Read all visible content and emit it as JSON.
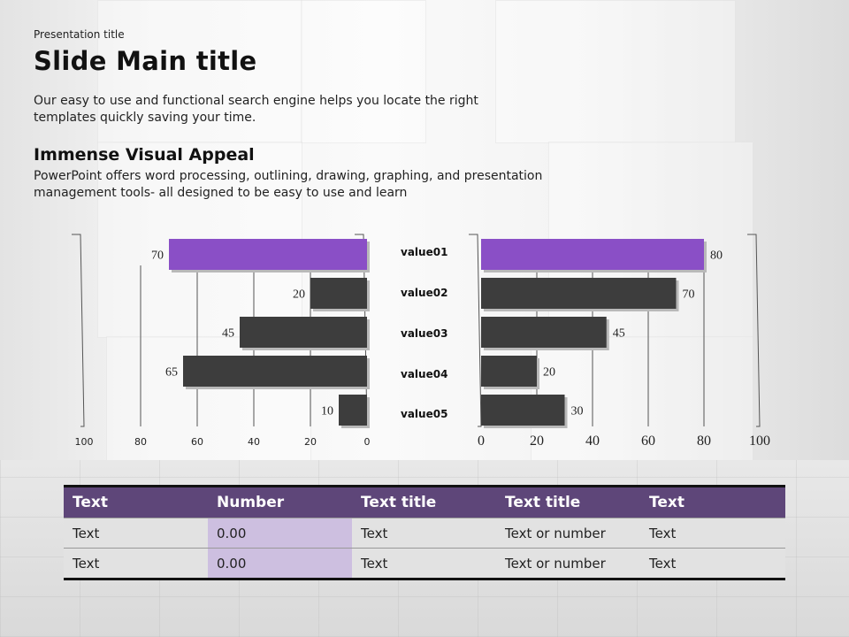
{
  "header": {
    "presentation_title": "Presentation title",
    "slide_title": "Slide Main title",
    "intro": "Our easy to use and functional search engine helps you locate the right templates quickly saving your time."
  },
  "section": {
    "heading": "Immense Visual Appeal",
    "body": "PowerPoint offers word processing, outlining, drawing, graphing, and presentation management tools- all designed to be easy to use and learn"
  },
  "colors": {
    "accent": "#8a4fc6",
    "bar": "#3d3d3d",
    "table_header": "#5e4679",
    "table_highlight": "#cdbfe0"
  },
  "chart_data": [
    {
      "type": "bar",
      "orientation": "horizontal",
      "direction": "reversed",
      "categories": [
        "value01",
        "value02",
        "value03",
        "value04",
        "value05"
      ],
      "values": [
        70,
        20,
        45,
        65,
        10
      ],
      "xlim": [
        0,
        100
      ],
      "xticks": [
        "100",
        "80",
        "60",
        "40",
        "20",
        "0"
      ],
      "highlight_index": 0
    },
    {
      "type": "bar",
      "orientation": "horizontal",
      "categories": [
        "value01",
        "value02",
        "value03",
        "value04",
        "value05"
      ],
      "values": [
        80,
        70,
        45,
        20,
        30
      ],
      "xlim": [
        0,
        100
      ],
      "xticks": [
        "0",
        "20",
        "40",
        "60",
        "80",
        "100"
      ],
      "highlight_index": 0
    }
  ],
  "table": {
    "headers": [
      "Text",
      "Number",
      "Text title",
      "Text title",
      "Text"
    ],
    "rows": [
      [
        "Text",
        "0.00",
        "Text",
        "Text or number",
        "Text"
      ],
      [
        "Text",
        "0.00",
        "Text",
        "Text or number",
        "Text"
      ]
    ]
  }
}
